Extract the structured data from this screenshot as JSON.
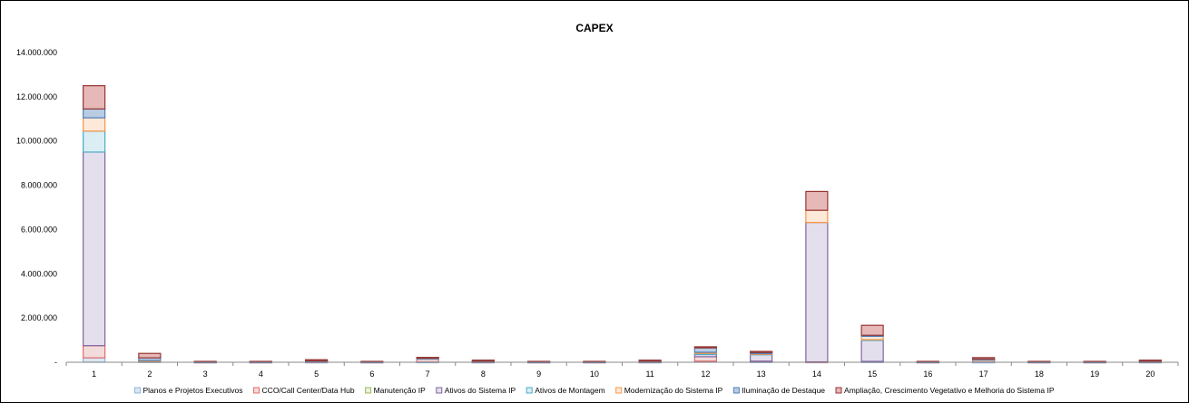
{
  "chart_data": {
    "type": "bar",
    "stacked": true,
    "title": "CAPEX",
    "xlabel": "",
    "ylabel": "",
    "ylim": [
      0,
      14000000
    ],
    "yticks": [
      0,
      2000000,
      4000000,
      6000000,
      8000000,
      10000000,
      12000000,
      14000000
    ],
    "ytick_labels": [
      "-",
      "2.000.000",
      "4.000.000",
      "6.000.000",
      "8.000.000",
      "10.000.000",
      "12.000.000",
      "14.000.000"
    ],
    "grid": false,
    "legend_position": "bottom",
    "categories": [
      "1",
      "2",
      "3",
      "4",
      "5",
      "6",
      "7",
      "8",
      "9",
      "10",
      "11",
      "12",
      "13",
      "14",
      "15",
      "16",
      "17",
      "18",
      "19",
      "20"
    ],
    "series": [
      {
        "name": "Planos e Projetos Executivos",
        "color": "#8DB4E2",
        "fill": "#DCE6F1",
        "values": [
          200000,
          20000,
          5000,
          5000,
          5000,
          5000,
          10000,
          5000,
          5000,
          5000,
          5000,
          50000,
          20000,
          10000,
          20000,
          5000,
          5000,
          5000,
          5000,
          5000
        ]
      },
      {
        "name": "CCO/Call Center/Data Hub",
        "color": "#E46C6C",
        "fill": "#F2DCDB",
        "values": [
          550000,
          20000,
          5000,
          5000,
          20000,
          5000,
          150000,
          10000,
          5000,
          5000,
          10000,
          200000,
          30000,
          10000,
          20000,
          5000,
          100000,
          5000,
          5000,
          10000
        ]
      },
      {
        "name": "Manutenção IP",
        "color": "#9BBB59",
        "fill": "#EBF1DE",
        "values": [
          0,
          0,
          0,
          0,
          0,
          0,
          0,
          0,
          0,
          0,
          0,
          0,
          0,
          0,
          0,
          0,
          0,
          0,
          0,
          0
        ]
      },
      {
        "name": "Ativos do Sistema IP",
        "color": "#8064A2",
        "fill": "#E4DFEC",
        "values": [
          8750000,
          20000,
          5000,
          5000,
          10000,
          5000,
          10000,
          10000,
          5000,
          5000,
          10000,
          100000,
          300000,
          6300000,
          950000,
          5000,
          10000,
          5000,
          5000,
          10000
        ]
      },
      {
        "name": "Ativos de Montagem",
        "color": "#4BACC6",
        "fill": "#DAEEF3",
        "values": [
          950000,
          10000,
          0,
          0,
          5000,
          0,
          5000,
          5000,
          0,
          0,
          5000,
          50000,
          20000,
          0,
          30000,
          0,
          5000,
          0,
          0,
          5000
        ]
      },
      {
        "name": "Modernização do Sistema IP",
        "color": "#F79646",
        "fill": "#FDE9D9",
        "values": [
          600000,
          10000,
          0,
          0,
          5000,
          0,
          5000,
          5000,
          0,
          0,
          5000,
          50000,
          20000,
          550000,
          150000,
          0,
          10000,
          0,
          0,
          5000
        ]
      },
      {
        "name": "Iluminação de Destaque",
        "color": "#4F81BD",
        "fill": "#B8CCE4",
        "values": [
          400000,
          120000,
          5000,
          5000,
          20000,
          5000,
          10000,
          20000,
          5000,
          5000,
          20000,
          200000,
          50000,
          0,
          50000,
          5000,
          20000,
          5000,
          5000,
          20000
        ]
      },
      {
        "name": "Ampliação, Crescimento Vegetativo e Melhoria do Sistema IP",
        "color": "#963634",
        "fill": "#E6B8B7",
        "values": [
          1050000,
          200000,
          20000,
          20000,
          50000,
          20000,
          30000,
          40000,
          20000,
          20000,
          40000,
          50000,
          50000,
          850000,
          450000,
          20000,
          60000,
          20000,
          20000,
          40000
        ]
      }
    ]
  }
}
